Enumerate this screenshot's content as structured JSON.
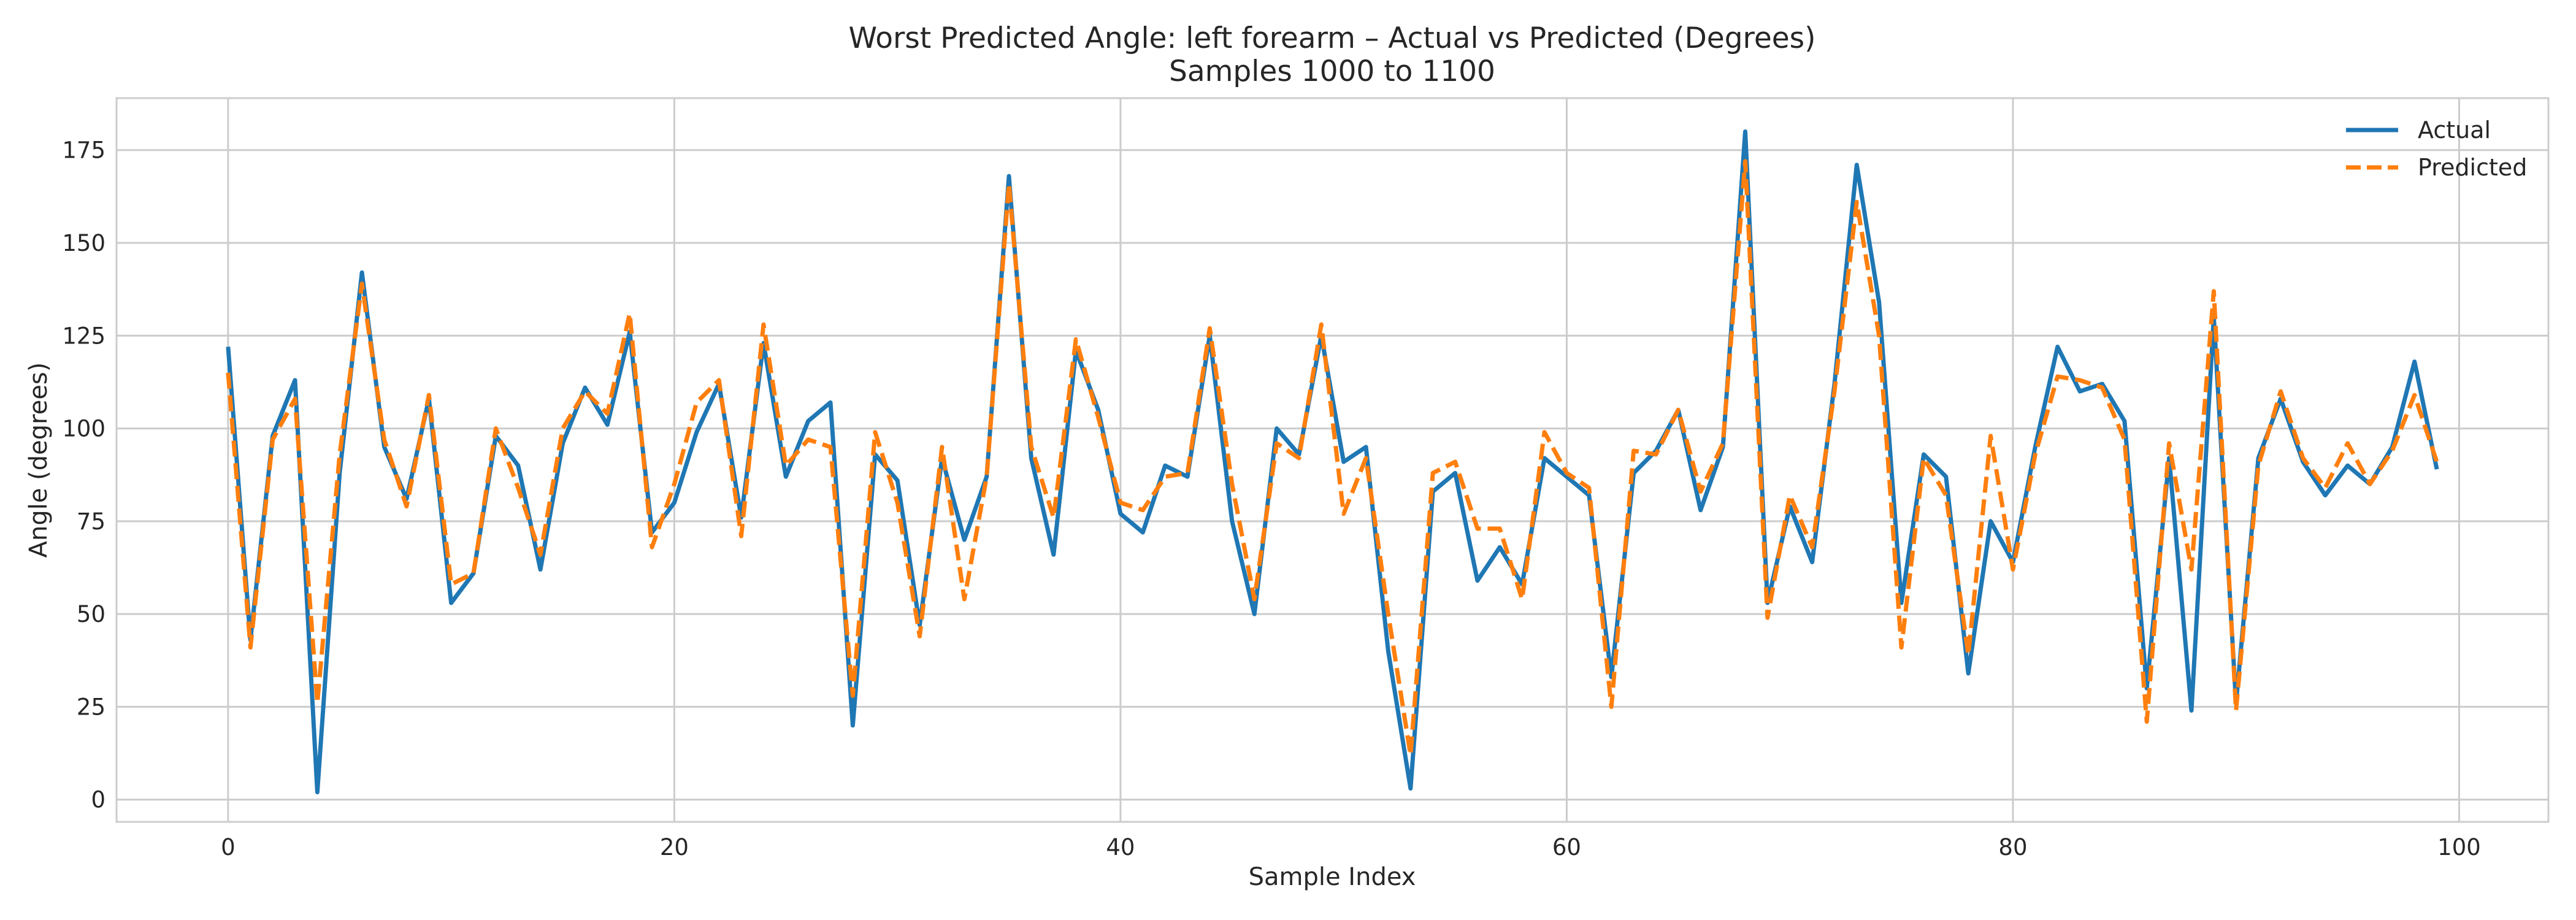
{
  "chart_data": {
    "type": "line",
    "title": "Worst Predicted Angle: left forearm – Actual vs Predicted (Degrees)",
    "subtitle": "Samples 1000 to 1100",
    "xlabel": "Sample Index",
    "ylabel": "Angle (degrees)",
    "xlim": [
      -5,
      104
    ],
    "ylim": [
      -6,
      189
    ],
    "xticks": [
      0,
      20,
      40,
      60,
      80,
      100
    ],
    "yticks": [
      0,
      25,
      50,
      75,
      100,
      125,
      150,
      175
    ],
    "grid": true,
    "legend_position": "top-right",
    "x": [
      0,
      1,
      2,
      3,
      4,
      5,
      6,
      7,
      8,
      9,
      10,
      11,
      12,
      13,
      14,
      15,
      16,
      17,
      18,
      19,
      20,
      21,
      22,
      23,
      24,
      25,
      26,
      27,
      28,
      29,
      30,
      31,
      32,
      33,
      34,
      35,
      36,
      37,
      38,
      39,
      40,
      41,
      42,
      43,
      44,
      45,
      46,
      47,
      48,
      49,
      50,
      51,
      52,
      53,
      54,
      55,
      56,
      57,
      58,
      59,
      60,
      61,
      62,
      63,
      64,
      65,
      66,
      67,
      68,
      69,
      70,
      71,
      72,
      73,
      74,
      75,
      76,
      77,
      78,
      79,
      80,
      81,
      82,
      83,
      84,
      85,
      86,
      87,
      88,
      89,
      90,
      91,
      92,
      93,
      94,
      95,
      96,
      97,
      98,
      99
    ],
    "series": [
      {
        "name": "Actual",
        "color": "#1f77b4",
        "style": "solid",
        "values": [
          122,
          43,
          98,
          113,
          2,
          88,
          142,
          95,
          81,
          108,
          53,
          61,
          98,
          90,
          62,
          96,
          111,
          101,
          126,
          72,
          80,
          99,
          112,
          76,
          123,
          87,
          102,
          107,
          20,
          93,
          86,
          47,
          92,
          70,
          87,
          168,
          92,
          66,
          121,
          105,
          77,
          72,
          90,
          87,
          125,
          75,
          50,
          100,
          93,
          125,
          91,
          95,
          40,
          3,
          83,
          88,
          59,
          68,
          58,
          92,
          87,
          82,
          33,
          88,
          94,
          105,
          78,
          95,
          180,
          53,
          79,
          64,
          112,
          171,
          134,
          53,
          93,
          87,
          34,
          75,
          64,
          95,
          122,
          110,
          112,
          102,
          30,
          92,
          24,
          130,
          26,
          92,
          108,
          91,
          82,
          90,
          85,
          95,
          118,
          89
        ]
      },
      {
        "name": "Predicted",
        "color": "#ff7f0e",
        "style": "dashed",
        "values": [
          115,
          41,
          97,
          108,
          26,
          93,
          139,
          97,
          79,
          109,
          58,
          61,
          100,
          84,
          66,
          100,
          110,
          104,
          131,
          68,
          85,
          107,
          113,
          71,
          128,
          90,
          97,
          95,
          28,
          99,
          80,
          44,
          95,
          54,
          87,
          166,
          95,
          76,
          124,
          103,
          80,
          78,
          87,
          88,
          127,
          85,
          54,
          96,
          92,
          128,
          77,
          92,
          50,
          12,
          88,
          91,
          73,
          73,
          54,
          99,
          88,
          84,
          25,
          94,
          93,
          105,
          83,
          96,
          172,
          49,
          82,
          68,
          110,
          161,
          125,
          41,
          92,
          82,
          39,
          98,
          62,
          93,
          114,
          113,
          111,
          97,
          21,
          96,
          62,
          137,
          24,
          90,
          110,
          92,
          84,
          96,
          85,
          94,
          109,
          91
        ]
      }
    ]
  }
}
